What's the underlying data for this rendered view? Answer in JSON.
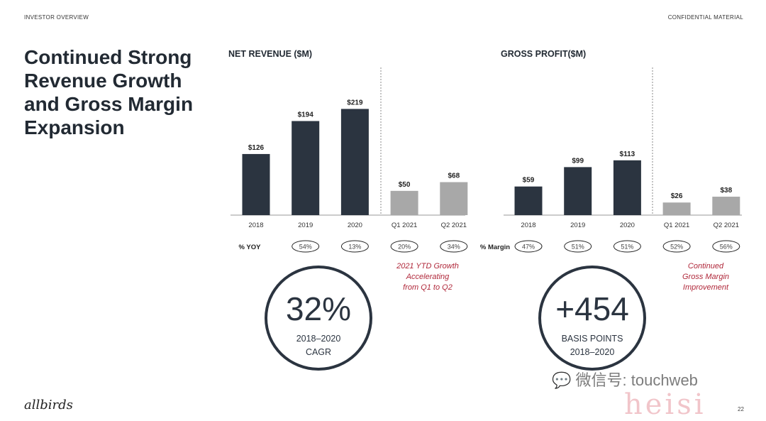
{
  "header": {
    "left": "INVESTOR OVERVIEW",
    "right": "CONFIDENTIAL MATERIAL"
  },
  "title": "Continued Strong Revenue Growth and Gross Margin Expansion",
  "colors": {
    "dark": "#2b3440",
    "light": "#a8a8a8",
    "accent": "#b0283a"
  },
  "chart_data": [
    {
      "type": "bar",
      "title": "NET REVENUE ($M)",
      "categories": [
        "2018",
        "2019",
        "2020",
        "Q1 2021",
        "Q2 2021"
      ],
      "values": [
        126,
        194,
        219,
        50,
        68
      ],
      "labels": [
        "$126",
        "$194",
        "$219",
        "$50",
        "$68"
      ],
      "row_label": "% YOY",
      "row_values": [
        "",
        "54%",
        "13%",
        "20%",
        "34%"
      ],
      "ylim": [
        0,
        240
      ]
    },
    {
      "type": "bar",
      "title": "GROSS PROFIT($M)",
      "categories": [
        "2018",
        "2019",
        "2020",
        "Q1 2021",
        "Q2 2021"
      ],
      "values": [
        59,
        99,
        113,
        26,
        38
      ],
      "labels": [
        "$59",
        "$99",
        "$113",
        "$26",
        "$38"
      ],
      "row_label": "% Margin",
      "row_values": [
        "47%",
        "51%",
        "51%",
        "52%",
        "56%"
      ],
      "ylim": [
        0,
        240
      ]
    }
  ],
  "notes": {
    "revenue": [
      "2021 YTD Growth",
      "Accelerating",
      "from Q1 to Q2"
    ],
    "margin": [
      "Continued",
      "Gross Margin",
      "Improvement"
    ]
  },
  "kpi1": {
    "value": "32%",
    "line1": "2018–2020",
    "line2": "CAGR"
  },
  "kpi2": {
    "value": "+454",
    "line1": "BASIS POINTS",
    "line2": "2018–2020"
  },
  "logo": "allbirds",
  "page_number": "22",
  "watermark": "微信号: touchweb",
  "watermark2": "heisi"
}
